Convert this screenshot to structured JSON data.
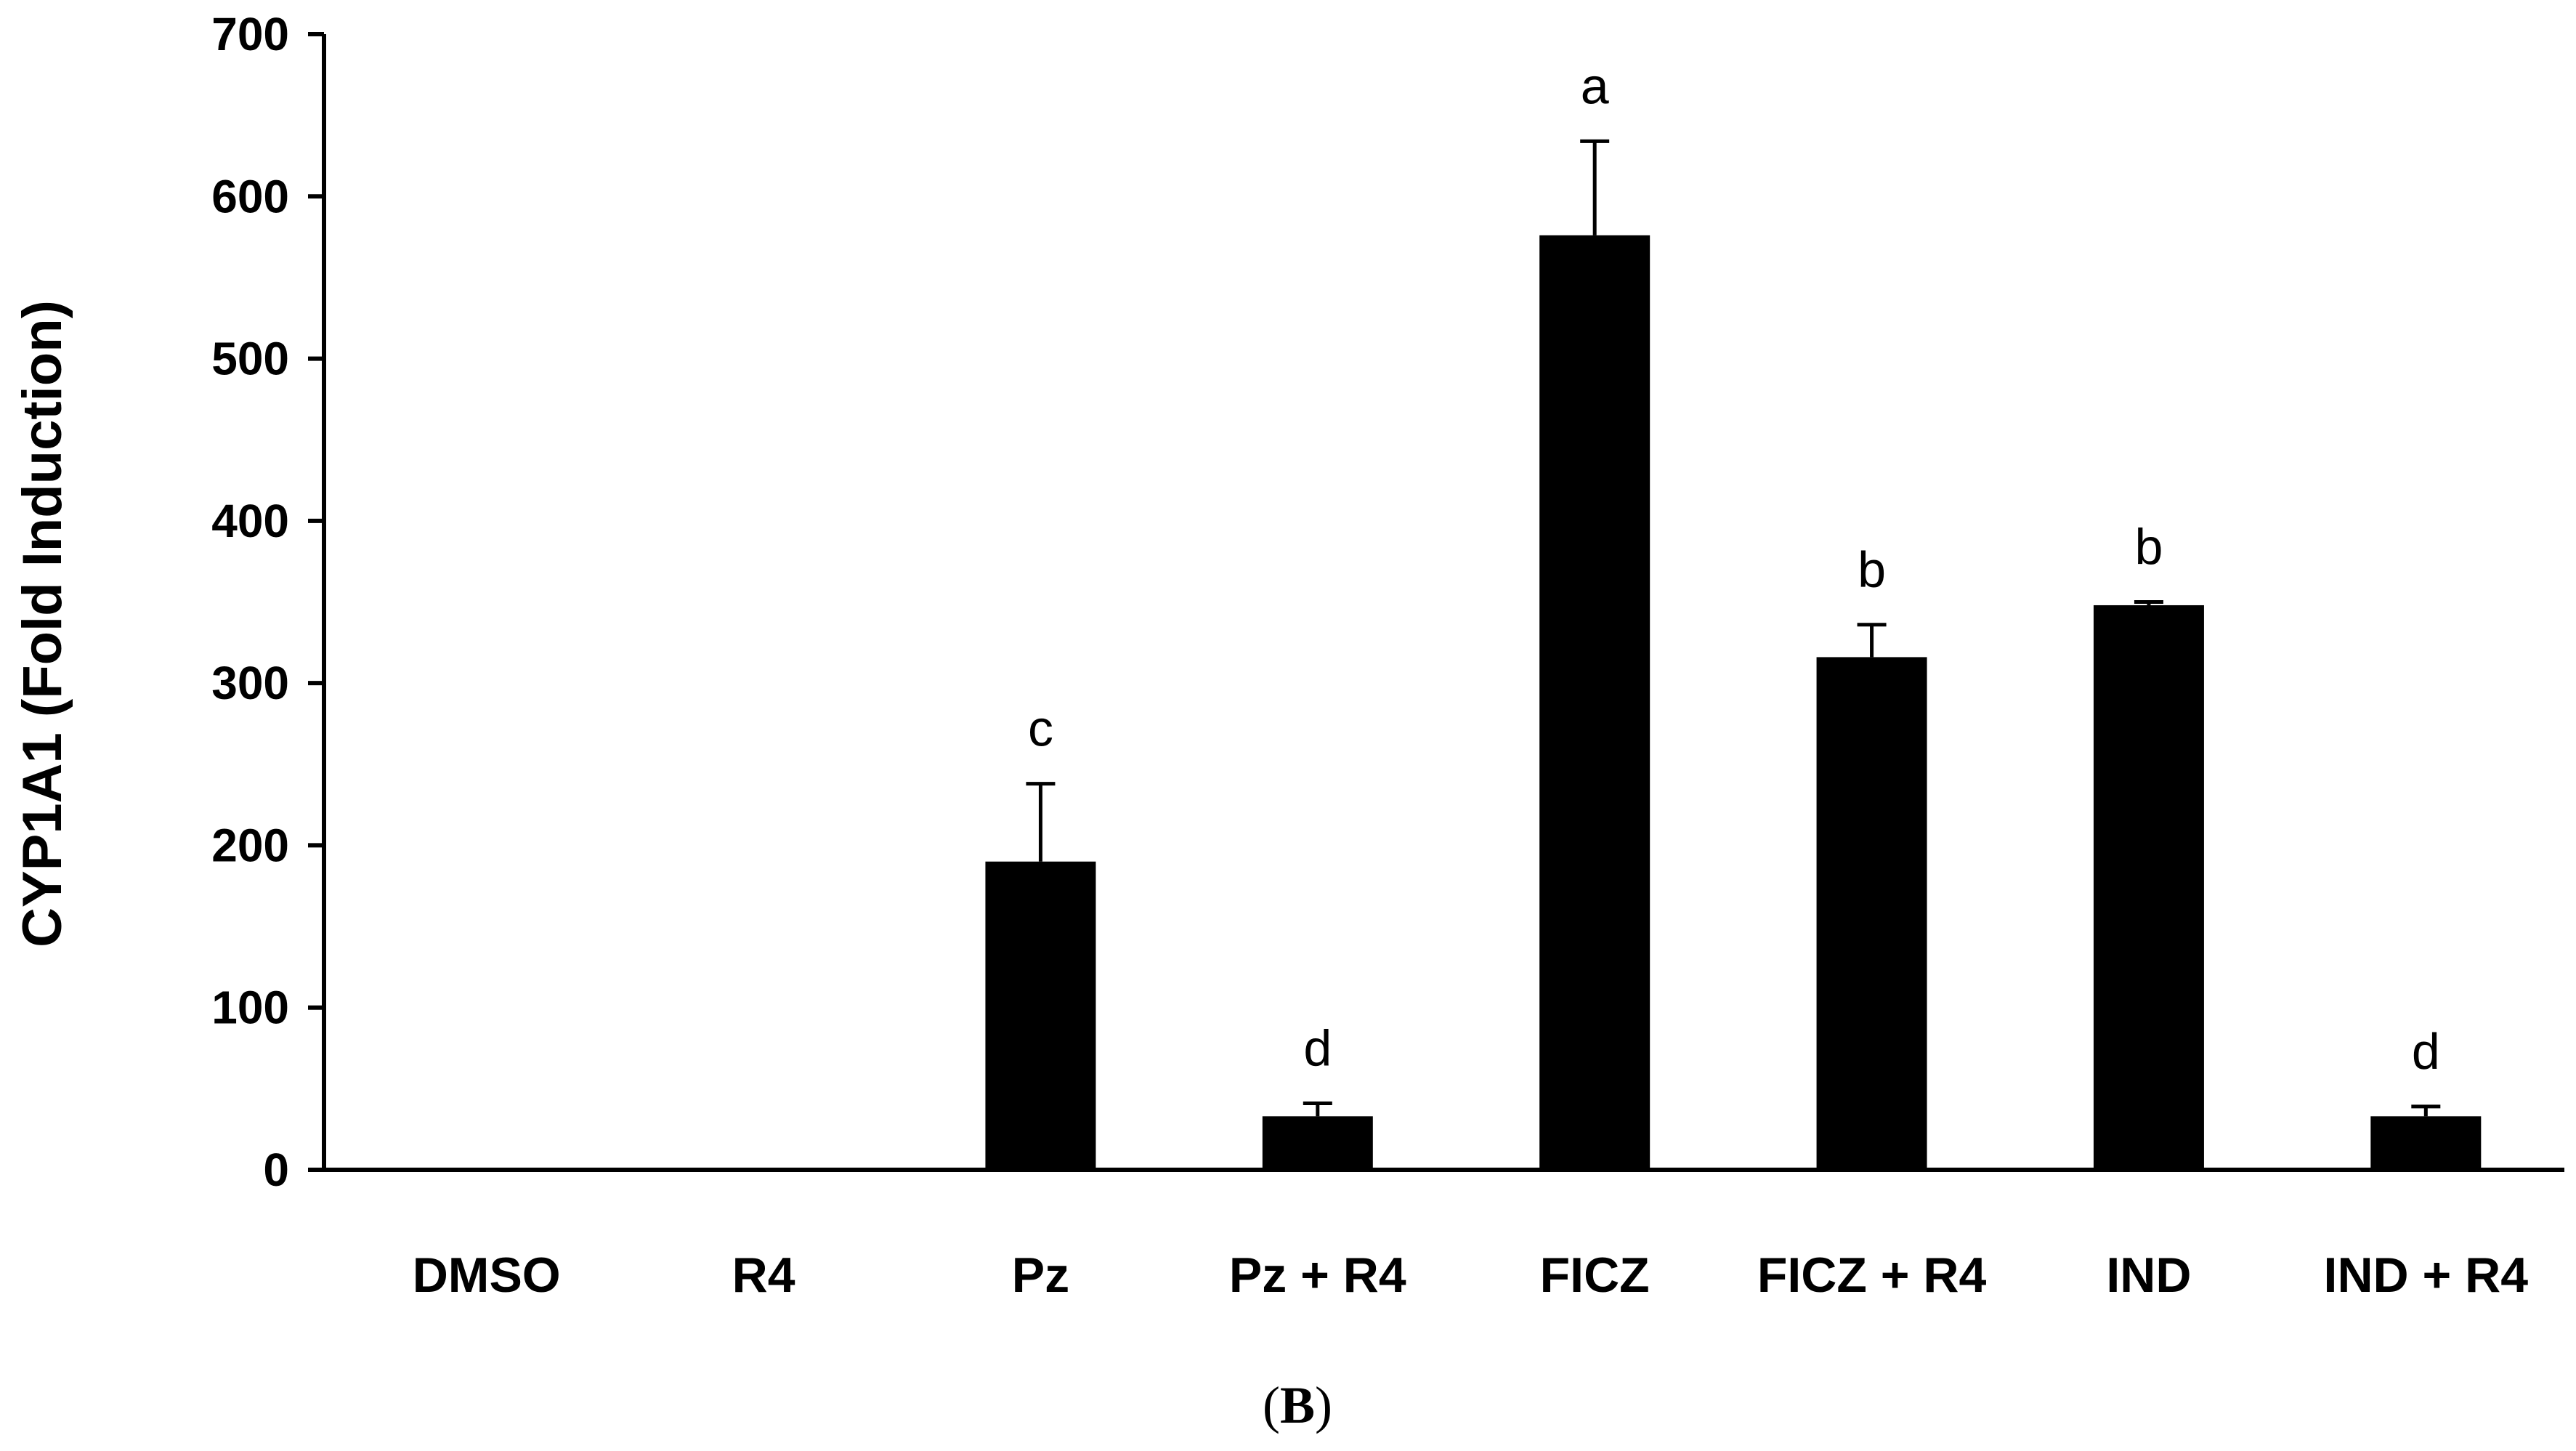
{
  "chart_data": {
    "type": "bar",
    "ylabel": "CYP1A1 (Fold Induction)",
    "xlabel": "",
    "ylim": [
      0,
      700
    ],
    "yticks": [
      0,
      100,
      200,
      300,
      400,
      500,
      600,
      700
    ],
    "ytick_labels": [
      "0",
      "100",
      "200",
      "300",
      "400",
      "500",
      "600",
      "700"
    ],
    "categories": [
      "DMSO",
      "R4",
      "Pz",
      "Pz + R4",
      "FICZ",
      "FICZ + R4",
      "IND",
      "IND + R4"
    ],
    "values": [
      1,
      1,
      190,
      33,
      576,
      316,
      348,
      33
    ],
    "errors": [
      0,
      0,
      48,
      8,
      58,
      20,
      2,
      6
    ],
    "significance_letters": [
      "",
      "",
      "c",
      "d",
      "a",
      "b",
      "b",
      "d"
    ],
    "bar_color": "#000000",
    "grid": false,
    "legend": "none"
  },
  "panel_label": {
    "open": "(",
    "letter": "B",
    "close": ")"
  }
}
